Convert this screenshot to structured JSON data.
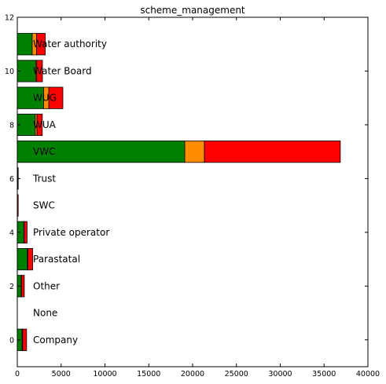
{
  "chart_data": {
    "type": "bar",
    "orientation": "horizontal",
    "stacked": true,
    "title": "scheme_management",
    "xlabel": "",
    "ylabel": "",
    "xlim": [
      0,
      40000
    ],
    "ylim": [
      -1,
      12
    ],
    "xticks": [
      0,
      5000,
      10000,
      15000,
      20000,
      25000,
      30000,
      35000,
      40000
    ],
    "yticks": [
      0,
      2,
      4,
      6,
      8,
      10,
      12
    ],
    "categories": [
      "Company",
      "None",
      "Other",
      "Parastatal",
      "Private operator",
      "SWC",
      "Trust",
      "VWC",
      "WUA",
      "WUG",
      "Water Board",
      "Water authority"
    ],
    "series": [
      {
        "name": "green",
        "color": "#008000",
        "values": [
          550,
          0,
          450,
          1150,
          750,
          10,
          40,
          19100,
          2050,
          3000,
          2100,
          1700
        ]
      },
      {
        "name": "orange",
        "color": "#ff8c00",
        "values": [
          60,
          0,
          30,
          50,
          35,
          5,
          20,
          2250,
          200,
          600,
          120,
          500
        ]
      },
      {
        "name": "red",
        "color": "#ff0000",
        "values": [
          450,
          0,
          320,
          550,
          330,
          90,
          20,
          15500,
          600,
          1600,
          650,
          1000
        ]
      }
    ],
    "grid": false,
    "legend": "none"
  }
}
